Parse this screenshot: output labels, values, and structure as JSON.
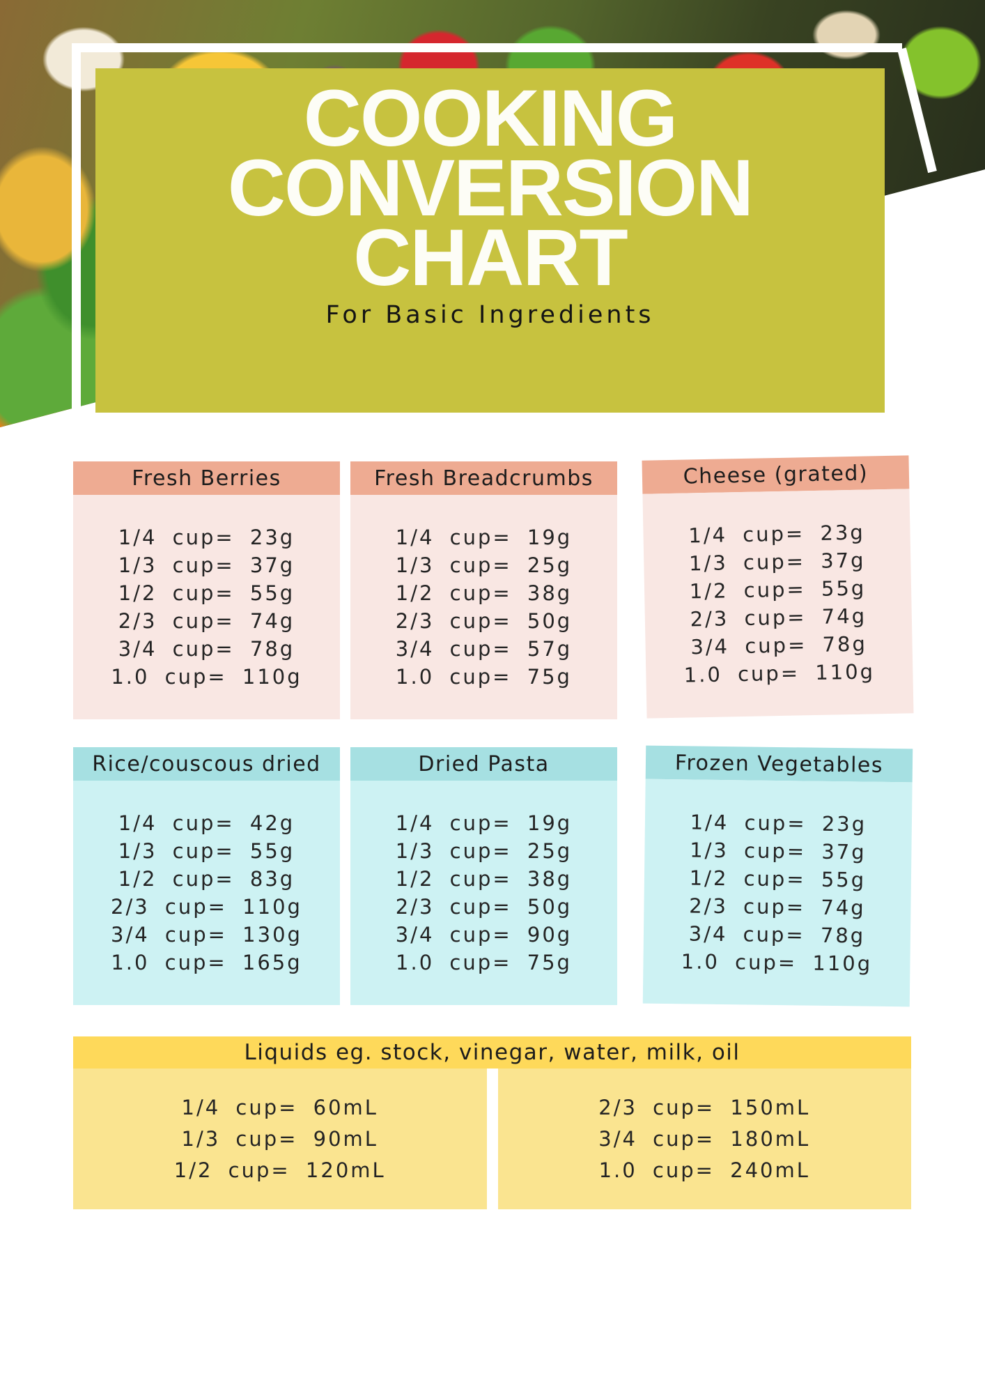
{
  "poster": {
    "title_lines": [
      "COOKING",
      "CONVERSION",
      "CHART"
    ],
    "subtitle": "For Basic Ingredients"
  },
  "colors": {
    "olive": "#c7c23f",
    "pink_header": "#eeab92",
    "pink_body": "#f9e7e3",
    "teal_header": "#a6e0e2",
    "teal_body": "#cdf2f3",
    "yellow_header": "#fed95a",
    "yellow_body": "#fae490",
    "ink": "#1f1f1f"
  },
  "cards": [
    {
      "title": "Fresh Berries",
      "rows": [
        "1/4 cup= 23g",
        "1/3 cup= 37g",
        "1/2 cup= 55g",
        "2/3 cup= 74g",
        "3/4 cup= 78g",
        "1.0 cup= 110g"
      ]
    },
    {
      "title": "Fresh Breadcrumbs",
      "rows": [
        "1/4 cup= 19g",
        "1/3 cup= 25g",
        "1/2 cup= 38g",
        "2/3 cup= 50g",
        "3/4 cup= 57g",
        "1.0 cup= 75g"
      ]
    },
    {
      "title": "Cheese (grated)",
      "rows": [
        "1/4 cup= 23g",
        "1/3 cup= 37g",
        "1/2 cup= 55g",
        "2/3 cup= 74g",
        "3/4 cup= 78g",
        "1.0 cup= 110g"
      ]
    },
    {
      "title": "Rice/couscous dried",
      "rows": [
        "1/4 cup= 42g",
        "1/3 cup= 55g",
        "1/2 cup= 83g",
        "2/3 cup= 110g",
        "3/4 cup= 130g",
        "1.0 cup= 165g"
      ]
    },
    {
      "title": "Dried Pasta",
      "rows": [
        "1/4 cup= 19g",
        "1/3 cup= 25g",
        "1/2 cup= 38g",
        "2/3 cup= 50g",
        "3/4 cup= 90g",
        "1.0 cup= 75g"
      ]
    },
    {
      "title": "Frozen Vegetables",
      "rows": [
        "1/4 cup= 23g",
        "1/3 cup= 37g",
        "1/2 cup= 55g",
        "2/3 cup= 74g",
        "3/4 cup= 78g",
        "1.0 cup= 110g"
      ]
    }
  ],
  "liquids": {
    "title": "Liquids eg. stock, vinegar, water, milk, oil",
    "left_rows": [
      "1/4 cup= 60mL",
      "1/3 cup= 90mL",
      "1/2 cup= 120mL"
    ],
    "right_rows": [
      "2/3 cup= 150mL",
      "3/4 cup= 180mL",
      "1.0 cup= 240mL"
    ]
  }
}
